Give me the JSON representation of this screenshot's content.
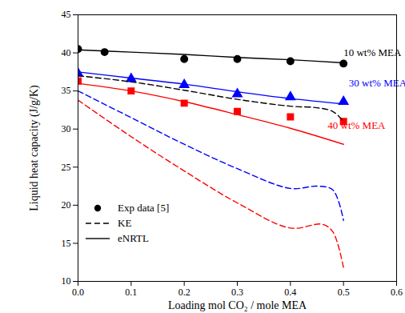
{
  "chart_data": {
    "type": "line",
    "x_label": "Loading mol CO₂ / mole MEA",
    "y_label": "Liquid heat capacity (J/g/K)",
    "xlim": [
      0,
      0.6
    ],
    "xticks": [
      {
        "value": 0,
        "label": "0.0"
      },
      0.1,
      0.2,
      0.3,
      0.4,
      0.5,
      0.6
    ],
    "ylim": [
      10,
      45
    ],
    "yticks": [
      10,
      15,
      20,
      25,
      30,
      35,
      40,
      45
    ],
    "legend": "lower left",
    "series": [
      {
        "name": "Exp data [5]",
        "type": "scatter",
        "marker": "circle",
        "color": "#000000",
        "x": [
          0,
          0.05,
          0.2,
          0.3,
          0.4,
          0.5
        ],
        "values": [
          40.5,
          40.1,
          39.2,
          39.2,
          38.9,
          38.6
        ]
      },
      {
        "name": "Exp data [5]",
        "type": "scatter",
        "marker": "triangle",
        "color": "#0000ff",
        "x": [
          0,
          0.1,
          0.2,
          0.3,
          0.4,
          0.5
        ],
        "values": [
          37.3,
          36.6,
          35.8,
          34.6,
          34.2,
          33.6
        ]
      },
      {
        "name": "Exp data [5]",
        "type": "scatter",
        "marker": "square",
        "color": "#ff0000",
        "x": [
          0,
          0.1,
          0.2,
          0.3,
          0.4,
          0.5
        ],
        "values": [
          36.3,
          35.0,
          33.4,
          32.3,
          31.6,
          31.0
        ]
      },
      {
        "name": "KE",
        "type": "line",
        "line_style": "dashed",
        "color": "#000000",
        "x": [
          0,
          0.1,
          0.2,
          0.3,
          0.4,
          0.45,
          0.48,
          0.5
        ],
        "values": [
          37.0,
          36.2,
          35.1,
          33.9,
          33.0,
          32.8,
          32.3,
          31.0
        ]
      },
      {
        "name": "KE",
        "type": "line",
        "line_style": "dashed",
        "color": "#0000ff",
        "x": [
          0,
          0.1,
          0.2,
          0.3,
          0.4,
          0.45,
          0.48,
          0.5
        ],
        "values": [
          35.0,
          31.5,
          28.0,
          24.8,
          22.2,
          22.5,
          22.0,
          18.0
        ]
      },
      {
        "name": "KE",
        "type": "line",
        "line_style": "dashed",
        "color": "#ff0000",
        "x": [
          0,
          0.1,
          0.2,
          0.3,
          0.4,
          0.46,
          0.48,
          0.5
        ],
        "values": [
          33.8,
          29.0,
          24.5,
          20.3,
          17.0,
          17.5,
          16.5,
          11.8
        ]
      },
      {
        "name": "eNRTL",
        "type": "line",
        "line_style": "solid",
        "color": "#000000",
        "x": [
          0,
          0.1,
          0.2,
          0.3,
          0.4,
          0.5
        ],
        "values": [
          40.4,
          40.1,
          39.8,
          39.4,
          39.1,
          38.7
        ]
      },
      {
        "name": "eNRTL",
        "type": "line",
        "line_style": "solid",
        "color": "#0000ff",
        "x": [
          0,
          0.1,
          0.2,
          0.3,
          0.4,
          0.5
        ],
        "values": [
          37.5,
          36.7,
          35.9,
          34.9,
          34.0,
          33.3
        ]
      },
      {
        "name": "eNRTL",
        "type": "line",
        "line_style": "solid",
        "color": "#ff0000",
        "x": [
          0,
          0.1,
          0.2,
          0.3,
          0.4,
          0.5
        ],
        "values": [
          36.0,
          35.0,
          33.6,
          31.9,
          30.1,
          28.0
        ]
      }
    ],
    "annotations": [
      {
        "text": "10 wt% MEA",
        "x": 0.5,
        "y": 40.0,
        "color": "#000000"
      },
      {
        "text": "30 wt% MEA",
        "x": 0.51,
        "y": 36.0,
        "color": "#0000ff"
      },
      {
        "text": "40 wt% MEA",
        "x": 0.47,
        "y": 30.5,
        "color": "#ff0000"
      }
    ]
  }
}
